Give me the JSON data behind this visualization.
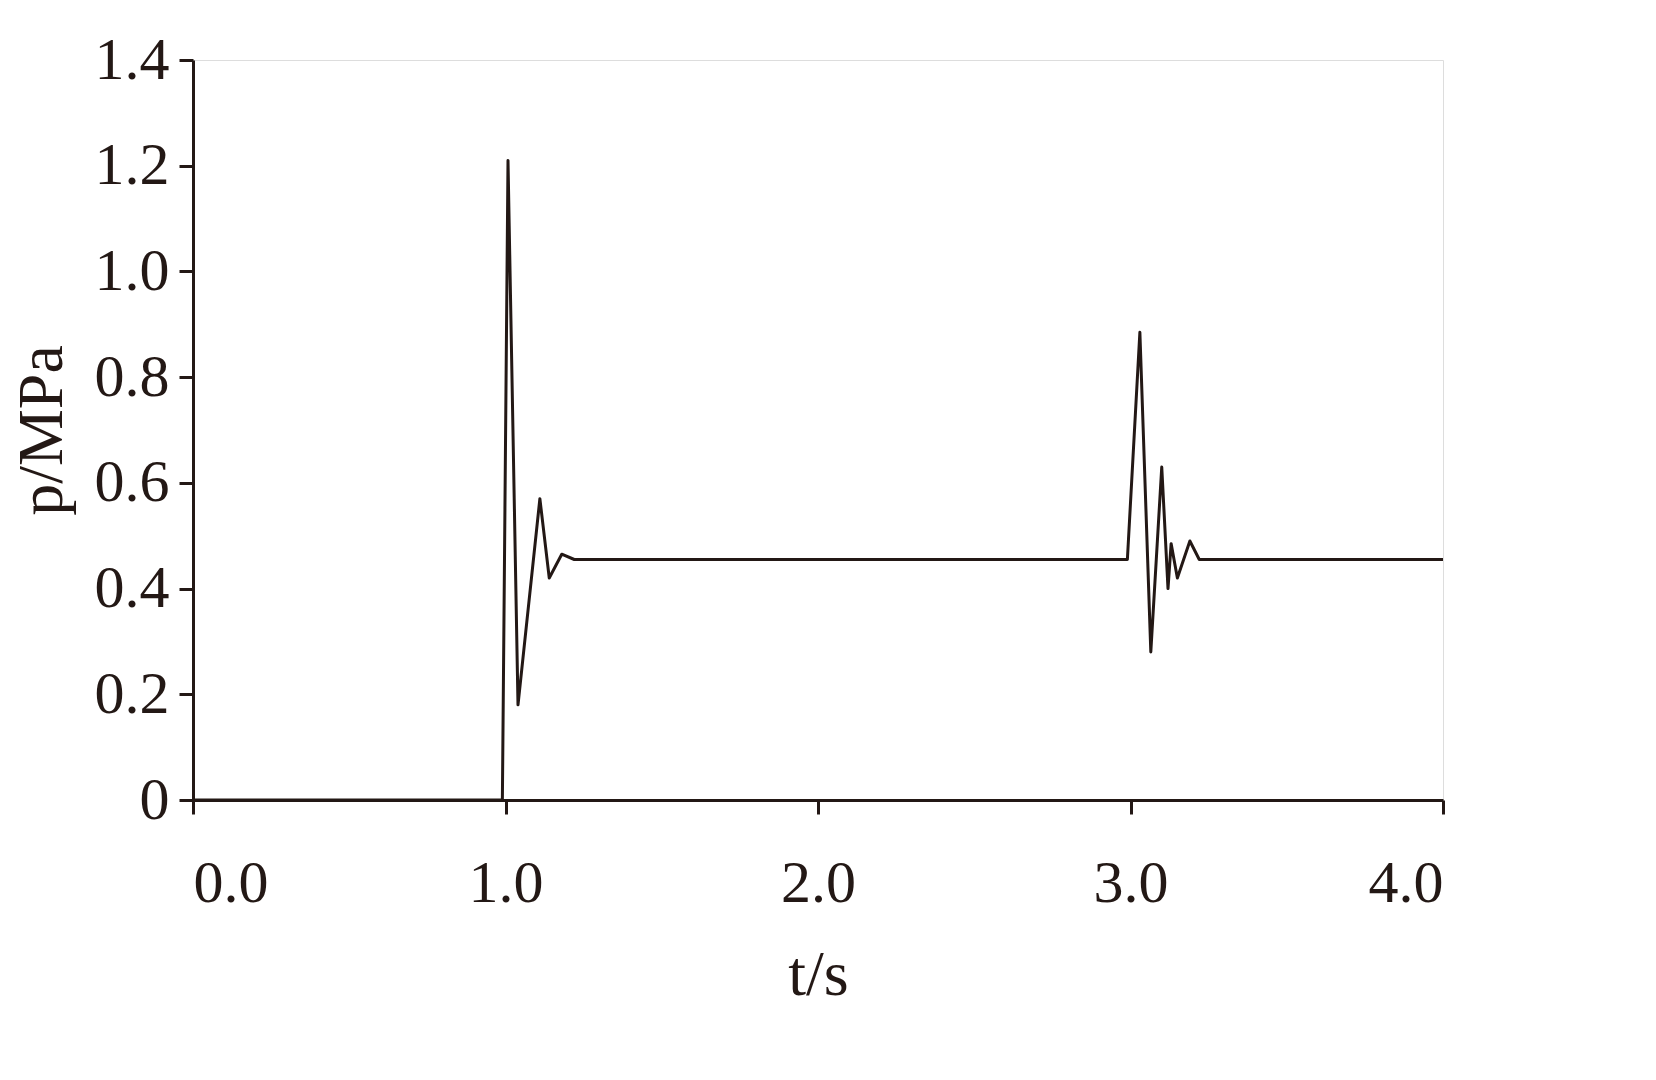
{
  "chart_data": {
    "type": "line",
    "xlabel": "t/s",
    "ylabel": "p/MPa",
    "x": [
      0,
      0.99,
      1.008,
      1.04,
      1.11,
      1.14,
      1.18,
      1.22,
      2.99,
      3.03,
      3.065,
      3.1,
      3.12,
      3.13,
      3.15,
      3.19,
      3.22,
      4.0
    ],
    "series": [
      {
        "color": "#231815",
        "values": [
          0,
          0,
          1.21,
          0.18,
          0.57,
          0.42,
          0.465,
          0.455,
          0.455,
          0.885,
          0.28,
          0.63,
          0.4,
          0.485,
          0.42,
          0.49,
          0.455,
          0.455
        ]
      }
    ],
    "xlim": [
      0,
      4.0
    ],
    "ylim": [
      0,
      1.4
    ],
    "xticks": [
      {
        "value": 0,
        "label": "0.0"
      },
      {
        "value": 1,
        "label": "1.0"
      },
      {
        "value": 2,
        "label": "2.0"
      },
      {
        "value": 3,
        "label": "3.0"
      },
      {
        "value": 4,
        "label": "4.0"
      }
    ],
    "yticks": [
      0,
      0.2,
      0.4,
      0.6,
      0.8,
      {
        "value": 1.0,
        "label": "1.0"
      },
      1.2,
      1.4
    ],
    "grid": false,
    "marker": "none",
    "line_style": "solid"
  }
}
